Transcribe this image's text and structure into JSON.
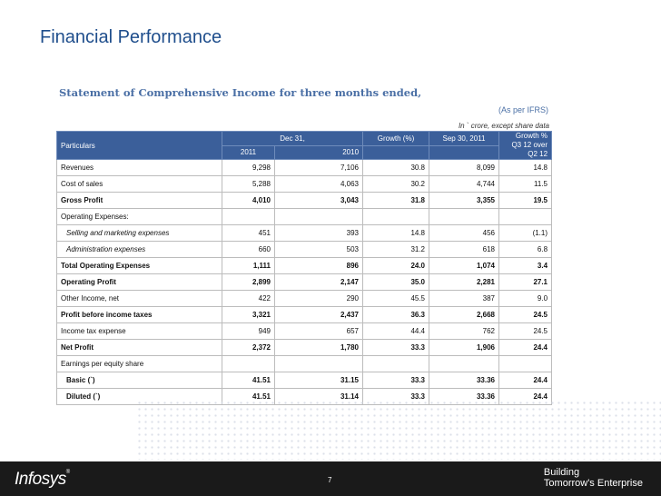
{
  "title": "Financial Performance",
  "subtitle": "Statement of Comprehensive Income for three months ended,",
  "note_ifrs": "(As per IFRS)",
  "note_unit": "In ` crore, except share data",
  "header": {
    "particulars": "Particulars",
    "dec31": "Dec 31,",
    "y2011": "2011",
    "y2010": "2010",
    "growth": "Growth (%)",
    "sep30": "Sep 30, 2011",
    "growth_q_line1": "Growth %",
    "growth_q_line2": "Q3 12 over",
    "growth_q_line3": "Q2 12"
  },
  "rows": [
    {
      "label": "Revenues",
      "v2011": "9,298",
      "v2010": "7,106",
      "growth": "30.8",
      "sep": "8,099",
      "gq": "14.8"
    },
    {
      "label": "Cost of sales",
      "v2011": "5,288",
      "v2010": "4,063",
      "growth": "30.2",
      "sep": "4,744",
      "gq": "11.5"
    },
    {
      "label": "Gross Profit",
      "v2011": "4,010",
      "v2010": "3,043",
      "growth": "31.8",
      "sep": "3,355",
      "gq": "19.5"
    },
    {
      "label": "Operating Expenses:",
      "v2011": "",
      "v2010": "",
      "growth": "",
      "sep": "",
      "gq": ""
    },
    {
      "label": "Selling and marketing expenses",
      "v2011": "451",
      "v2010": "393",
      "growth": "14.8",
      "sep": "456",
      "gq": "(1.1)"
    },
    {
      "label": "Administration expenses",
      "v2011": "660",
      "v2010": "503",
      "growth": "31.2",
      "sep": "618",
      "gq": "6.8"
    },
    {
      "label": "Total Operating Expenses",
      "v2011": "1,111",
      "v2010": "896",
      "growth": "24.0",
      "sep": "1,074",
      "gq": "3.4"
    },
    {
      "label": "Operating Profit",
      "v2011": "2,899",
      "v2010": "2,147",
      "growth": "35.0",
      "sep": "2,281",
      "gq": "27.1"
    },
    {
      "label": "Other Income, net",
      "v2011": "422",
      "v2010": "290",
      "growth": "45.5",
      "sep": "387",
      "gq": "9.0"
    },
    {
      "label": "Profit before income taxes",
      "v2011": "3,321",
      "v2010": "2,437",
      "growth": "36.3",
      "sep": "2,668",
      "gq": "24.5"
    },
    {
      "label": "Income tax expense",
      "v2011": "949",
      "v2010": "657",
      "growth": "44.4",
      "sep": "762",
      "gq": "24.5"
    },
    {
      "label": "Net Profit",
      "v2011": "2,372",
      "v2010": "1,780",
      "growth": "33.3",
      "sep": "1,906",
      "gq": "24.4"
    },
    {
      "label": "Earnings per equity share",
      "v2011": "",
      "v2010": "",
      "growth": "",
      "sep": "",
      "gq": ""
    },
    {
      "label": "Basic (`)",
      "v2011": "41.51",
      "v2010": "31.15",
      "growth": "33.3",
      "sep": "33.36",
      "gq": "24.4"
    },
    {
      "label": "Diluted (`)",
      "v2011": "41.51",
      "v2010": "31.14",
      "growth": "33.3",
      "sep": "33.36",
      "gq": "24.4"
    }
  ],
  "footer": {
    "logo": "Infosys",
    "logo_mark": "®",
    "page": "7",
    "tagline_line1": "Building",
    "tagline_line2": "Tomorrow's Enterprise"
  }
}
